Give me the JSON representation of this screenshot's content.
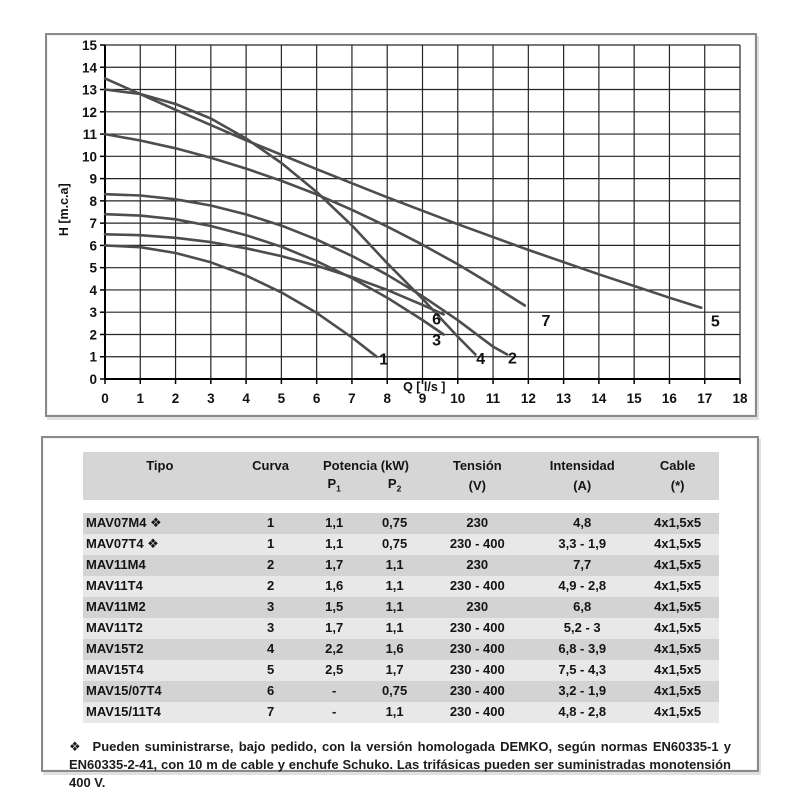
{
  "chart": {
    "grid_color": "#262626",
    "axis_color": "#000000",
    "curve_color": "#4d4d4d"
  },
  "chart_data": {
    "type": "line",
    "title": "",
    "xlabel": "Q [ l/s ]",
    "ylabel": "H [m.c.a]",
    "xlim": [
      0,
      18
    ],
    "ylim": [
      0,
      15
    ],
    "grid": true,
    "x_tick_labels": [
      "0",
      "1",
      "2",
      "3",
      "4",
      "5",
      "6",
      "7",
      "8",
      "9",
      "10",
      "11",
      "12",
      "13",
      "14",
      "15",
      "16",
      "17",
      "18"
    ],
    "y_tick_labels": [
      "0",
      "1",
      "2",
      "3",
      "4",
      "5",
      "6",
      "7",
      "8",
      "9",
      "10",
      "11",
      "12",
      "13",
      "14",
      "15"
    ],
    "series": [
      {
        "name": "1",
        "label_pos": [
          7.9,
          0.9
        ],
        "points": [
          [
            0,
            6.0
          ],
          [
            1,
            5.92
          ],
          [
            2,
            5.66
          ],
          [
            3,
            5.24
          ],
          [
            4,
            4.65
          ],
          [
            5,
            3.89
          ],
          [
            6,
            2.97
          ],
          [
            7,
            1.87
          ],
          [
            7.7,
            1.0
          ]
        ]
      },
      {
        "name": "2",
        "label_pos": [
          11.55,
          0.95
        ],
        "points": [
          [
            0,
            8.3
          ],
          [
            1,
            8.24
          ],
          [
            2,
            8.07
          ],
          [
            3,
            7.79
          ],
          [
            4,
            7.39
          ],
          [
            5,
            6.89
          ],
          [
            6,
            6.26
          ],
          [
            7,
            5.53
          ],
          [
            8,
            4.68
          ],
          [
            9,
            3.72
          ],
          [
            10,
            2.64
          ],
          [
            11,
            1.45
          ],
          [
            11.4,
            1.1
          ]
        ]
      },
      {
        "name": "3",
        "label_pos": [
          9.4,
          1.75
        ],
        "points": [
          [
            0,
            7.4
          ],
          [
            1,
            7.34
          ],
          [
            2,
            7.17
          ],
          [
            3,
            6.87
          ],
          [
            4,
            6.46
          ],
          [
            5,
            5.94
          ],
          [
            6,
            5.29
          ],
          [
            7,
            4.53
          ],
          [
            8,
            3.65
          ],
          [
            9,
            2.65
          ],
          [
            9.6,
            2.0
          ]
        ]
      },
      {
        "name": "4",
        "label_pos": [
          10.65,
          0.92
        ],
        "points": [
          [
            0,
            13.0
          ],
          [
            1,
            12.8
          ],
          [
            2,
            12.35
          ],
          [
            3,
            11.7
          ],
          [
            4,
            10.8
          ],
          [
            5,
            9.7
          ],
          [
            6,
            8.4
          ],
          [
            7,
            6.9
          ],
          [
            8,
            5.2
          ],
          [
            9,
            3.6
          ],
          [
            10,
            1.9
          ],
          [
            10.5,
            1.1
          ]
        ]
      },
      {
        "name": "5",
        "label_pos": [
          17.3,
          2.6
        ],
        "points": [
          [
            0,
            13.5
          ],
          [
            2,
            12.09
          ],
          [
            4,
            10.72
          ],
          [
            6,
            9.42
          ],
          [
            8,
            8.16
          ],
          [
            10,
            6.95
          ],
          [
            12,
            5.8
          ],
          [
            14,
            4.7
          ],
          [
            16,
            3.65
          ],
          [
            16.9,
            3.2
          ]
        ]
      },
      {
        "name": "6",
        "label_pos": [
          9.4,
          2.7
        ],
        "points": [
          [
            0,
            6.5
          ],
          [
            1,
            6.46
          ],
          [
            2,
            6.34
          ],
          [
            3,
            6.15
          ],
          [
            4,
            5.87
          ],
          [
            5,
            5.52
          ],
          [
            6,
            5.09
          ],
          [
            7,
            4.58
          ],
          [
            8,
            4.0
          ],
          [
            9,
            3.33
          ],
          [
            9.6,
            2.9
          ]
        ]
      },
      {
        "name": "7",
        "label_pos": [
          12.5,
          2.62
        ],
        "points": [
          [
            0,
            11.0
          ],
          [
            1,
            10.71
          ],
          [
            2,
            10.36
          ],
          [
            3,
            9.94
          ],
          [
            4,
            9.45
          ],
          [
            5,
            8.9
          ],
          [
            6,
            8.29
          ],
          [
            7,
            7.6
          ],
          [
            8,
            6.85
          ],
          [
            9,
            6.03
          ],
          [
            10,
            5.15
          ],
          [
            11,
            4.2
          ],
          [
            11.9,
            3.3
          ]
        ]
      }
    ]
  },
  "table": {
    "headers": {
      "tipo": "Tipo",
      "curva": "Curva",
      "potencia": "Potencia (kW)",
      "p_base": "P",
      "p1_sub": "1",
      "p2_sub": "2",
      "tension": "Tensión",
      "tension_unit": "(V)",
      "intensidad": "Intensidad",
      "intensidad_unit": "(A)",
      "cable": "Cable",
      "cable_unit": "(*)"
    },
    "rows": [
      {
        "tipo": "MAV07M4 ❖",
        "curva": "1",
        "p1": "1,1",
        "p2": "0,75",
        "tension": "230",
        "intensidad": "4,8",
        "cable": "4x1,5x5"
      },
      {
        "tipo": "MAV07T4 ❖",
        "curva": "1",
        "p1": "1,1",
        "p2": "0,75",
        "tension": "230 - 400",
        "intensidad": "3,3 - 1,9",
        "cable": "4x1,5x5"
      },
      {
        "tipo": "MAV11M4",
        "curva": "2",
        "p1": "1,7",
        "p2": "1,1",
        "tension": "230",
        "intensidad": "7,7",
        "cable": "4x1,5x5"
      },
      {
        "tipo": "MAV11T4",
        "curva": "2",
        "p1": "1,6",
        "p2": "1,1",
        "tension": "230 - 400",
        "intensidad": "4,9 - 2,8",
        "cable": "4x1,5x5"
      },
      {
        "tipo": "MAV11M2",
        "curva": "3",
        "p1": "1,5",
        "p2": "1,1",
        "tension": "230",
        "intensidad": "6,8",
        "cable": "4x1,5x5"
      },
      {
        "tipo": "MAV11T2",
        "curva": "3",
        "p1": "1,7",
        "p2": "1,1",
        "tension": "230 - 400",
        "intensidad": "5,2 - 3",
        "cable": "4x1,5x5"
      },
      {
        "tipo": "MAV15T2",
        "curva": "4",
        "p1": "2,2",
        "p2": "1,6",
        "tension": "230 - 400",
        "intensidad": "6,8 - 3,9",
        "cable": "4x1,5x5"
      },
      {
        "tipo": "MAV15T4",
        "curva": "5",
        "p1": "2,5",
        "p2": "1,7",
        "tension": "230 - 400",
        "intensidad": "7,5 - 4,3",
        "cable": "4x1,5x5"
      },
      {
        "tipo": "MAV15/07T4",
        "curva": "6",
        "p1": "-",
        "p2": "0,75",
        "tension": "230 - 400",
        "intensidad": "3,2 - 1,9",
        "cable": "4x1,5x5"
      },
      {
        "tipo": "MAV15/11T4",
        "curva": "7",
        "p1": "-",
        "p2": "1,1",
        "tension": "230 - 400",
        "intensidad": "4,8 - 2,8",
        "cable": "4x1,5x5"
      }
    ]
  },
  "footnote": {
    "symbol": "❖",
    "text": "Pueden suministrarse, bajo pedido, con la versión homologada DEMKO, según normas EN60335-1 y EN60335-2-41, con 10 m de cable y enchufe Schuko. Las trifásicas pueden ser suministradas monotensión 400 V."
  }
}
